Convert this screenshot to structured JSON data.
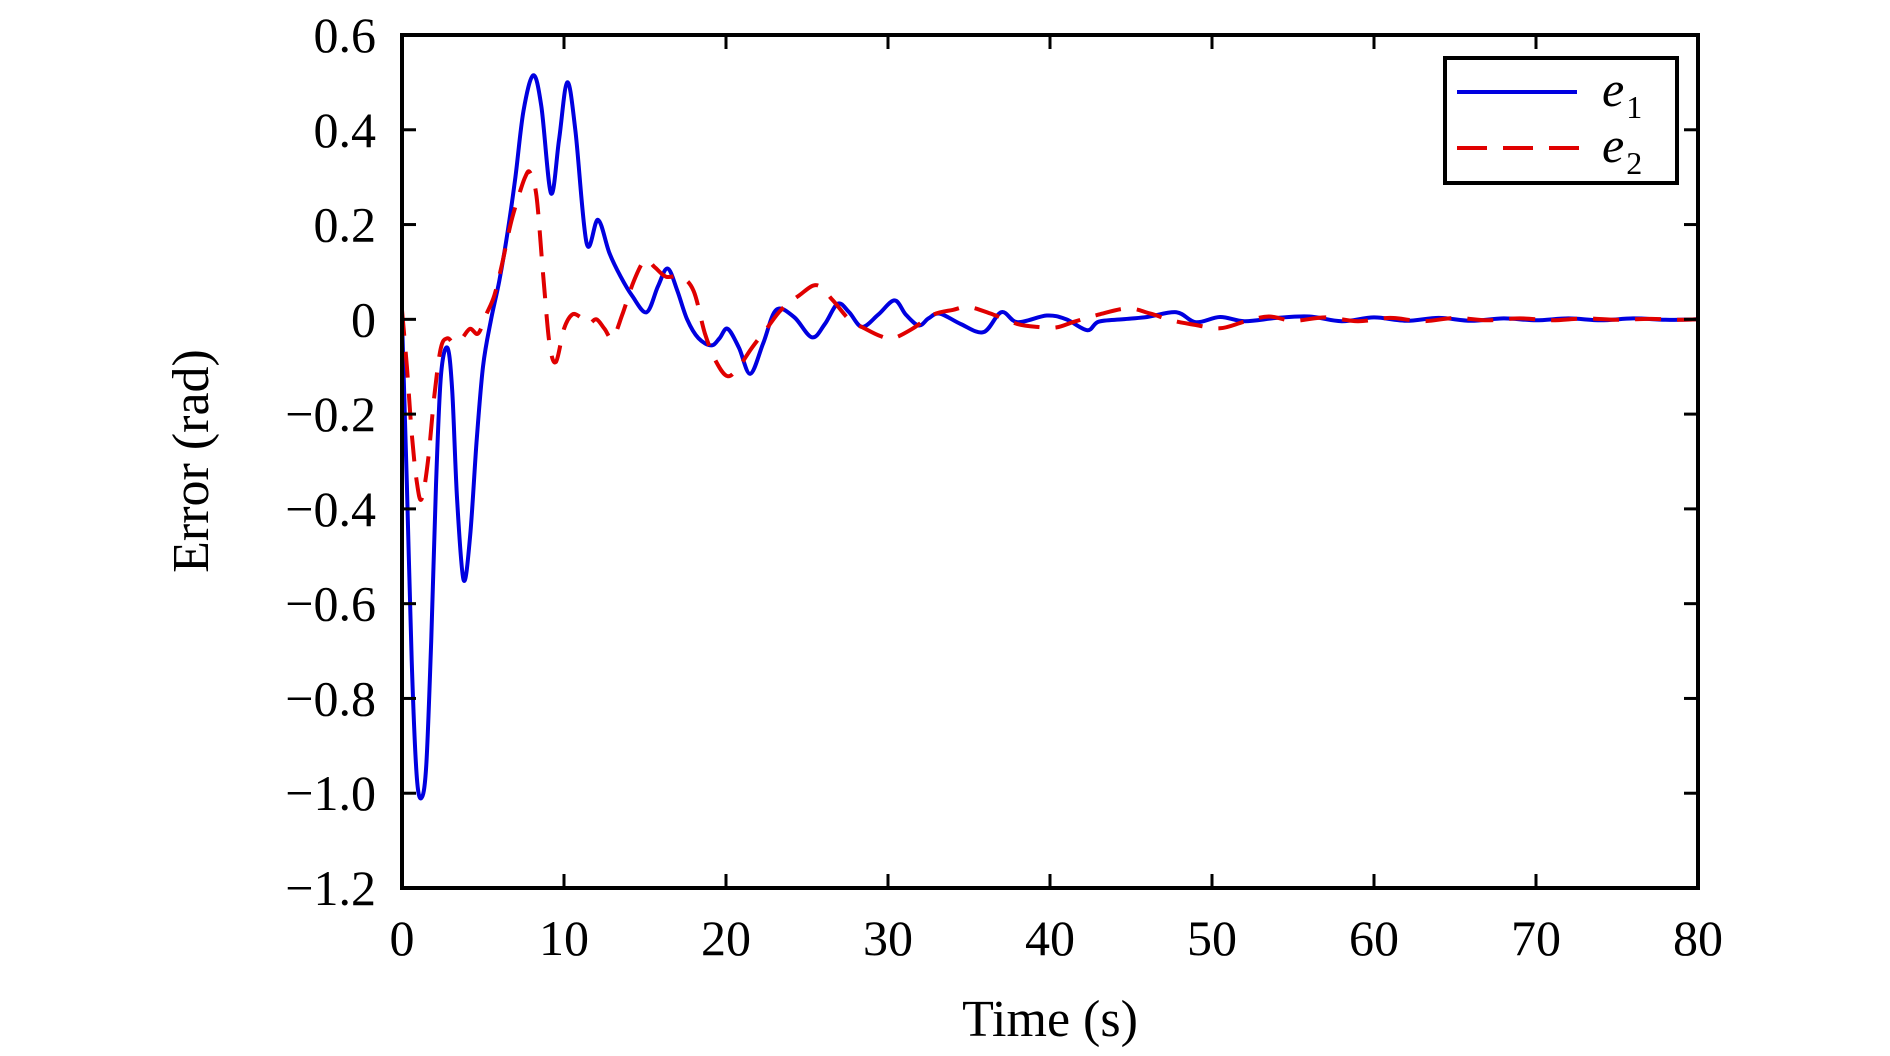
{
  "chart_data": {
    "type": "line",
    "title": "",
    "xlabel": "Time (s)",
    "ylabel": "Error (rad)",
    "xlim": [
      0,
      80
    ],
    "ylim": [
      -1.2,
      0.6
    ],
    "grid": false,
    "legend_position": "upper right",
    "x_ticks": [
      0,
      10,
      20,
      30,
      40,
      50,
      60,
      70,
      80
    ],
    "x_tick_labels": [
      "0",
      "10",
      "20",
      "30",
      "40",
      "50",
      "60",
      "70",
      "80"
    ],
    "y_ticks": [
      0.6,
      0.4,
      0.2,
      0,
      -0.2,
      -0.4,
      -0.6,
      -0.8,
      -1.0,
      -1.2
    ],
    "y_tick_labels": [
      "0.6",
      "0.4",
      "0.2",
      "0",
      "−0.2",
      "−0.4",
      "−0.6",
      "−0.8",
      "−1.0",
      "−1.2"
    ],
    "series": [
      {
        "name": "e1",
        "label_base": "e",
        "label_sub": "1",
        "color": "#0000e0",
        "style": "solid",
        "x": [
          0,
          0.3,
          0.6,
          0.9,
          1.2,
          1.5,
          1.8,
          2.1,
          2.4,
          2.8,
          3.1,
          3.4,
          3.8,
          4.2,
          4.6,
          5.0,
          5.5,
          6.0,
          6.5,
          7.0,
          7.5,
          8.1,
          8.6,
          9.2,
          9.7,
          10.2,
          10.7,
          11.4,
          12.1,
          12.8,
          13.5,
          14.2,
          15.1,
          15.8,
          16.4,
          17.0,
          17.6,
          18.3,
          19.1,
          19.6,
          20.1,
          20.8,
          21.5,
          22.3,
          23.1,
          24.2,
          25.3,
          26.1,
          26.9,
          27.6,
          28.4,
          29.4,
          30.4,
          31.1,
          31.9,
          32.5,
          33.2,
          34.5,
          35.9,
          37.0,
          38.0,
          39.8,
          41.0,
          42.3,
          43.0,
          44.5,
          46.0,
          47.8,
          49.0,
          50.5,
          52.0,
          54.0,
          56.0,
          58.0,
          60.0,
          62.0,
          64.0,
          66.0,
          68.0,
          70.0,
          72.0,
          74.0,
          76.0,
          78.0,
          80.0
        ],
        "values": [
          0,
          -0.35,
          -0.72,
          -0.96,
          -1.01,
          -0.94,
          -0.68,
          -0.35,
          -0.12,
          -0.06,
          -0.15,
          -0.38,
          -0.55,
          -0.46,
          -0.26,
          -0.1,
          0.0,
          0.08,
          0.18,
          0.3,
          0.44,
          0.515,
          0.45,
          0.266,
          0.38,
          0.5,
          0.4,
          0.16,
          0.21,
          0.14,
          0.09,
          0.05,
          0.015,
          0.07,
          0.107,
          0.06,
          0.0,
          -0.04,
          -0.055,
          -0.04,
          -0.02,
          -0.06,
          -0.115,
          -0.05,
          0.02,
          0.005,
          -0.038,
          -0.01,
          0.033,
          0.015,
          -0.016,
          0.01,
          0.04,
          0.01,
          -0.013,
          0.002,
          0.012,
          -0.01,
          -0.027,
          0.015,
          -0.006,
          0.008,
          0.0,
          -0.023,
          -0.005,
          0.0,
          0.005,
          0.015,
          -0.006,
          0.005,
          -0.004,
          0.003,
          0.006,
          -0.004,
          0.004,
          -0.003,
          0.003,
          -0.003,
          0.002,
          -0.002,
          0.002,
          -0.002,
          0.002,
          -0.001,
          0.0
        ]
      },
      {
        "name": "e2",
        "label_base": "e",
        "label_sub": "2",
        "color": "#e00000",
        "style": "dashed",
        "x": [
          0,
          0.3,
          0.6,
          0.9,
          1.2,
          1.6,
          2.0,
          2.4,
          2.8,
          3.2,
          3.7,
          4.2,
          4.7,
          5.2,
          5.7,
          6.2,
          6.7,
          7.2,
          7.6,
          7.9,
          8.3,
          8.7,
          9.1,
          9.5,
          10.0,
          10.5,
          11.0,
          11.5,
          12.0,
          12.5,
          13.0,
          13.6,
          14.3,
          15.0,
          15.6,
          16.3,
          17.2,
          18.0,
          18.7,
          19.4,
          20.1,
          20.8,
          21.6,
          22.5,
          23.4,
          24.5,
          25.6,
          26.6,
          27.6,
          28.6,
          29.5,
          30.3,
          31.5,
          32.8,
          34.0,
          35.0,
          36.5,
          38.0,
          39.2,
          40.4,
          41.5,
          43.0,
          44.8,
          46.2,
          47.5,
          49.0,
          50.5,
          52.0,
          53.5,
          55.0,
          57.0,
          59.0,
          61.0,
          63.0,
          65.0,
          67.0,
          69.0,
          71.0,
          73.0,
          75.0,
          77.0,
          79.0,
          80.0
        ],
        "values": [
          0.02,
          -0.1,
          -0.24,
          -0.34,
          -0.38,
          -0.3,
          -0.16,
          -0.06,
          -0.04,
          -0.05,
          -0.04,
          -0.02,
          -0.03,
          0.01,
          0.05,
          0.12,
          0.2,
          0.26,
          0.3,
          0.31,
          0.26,
          0.1,
          -0.05,
          -0.09,
          -0.02,
          0.01,
          0.005,
          -0.01,
          0.0,
          -0.02,
          -0.04,
          0.01,
          0.08,
          0.125,
          0.11,
          0.09,
          0.09,
          0.06,
          -0.03,
          -0.09,
          -0.12,
          -0.1,
          -0.06,
          -0.02,
          0.02,
          0.05,
          0.072,
          0.04,
          0.0,
          -0.02,
          -0.035,
          -0.04,
          -0.02,
          0.01,
          0.02,
          0.026,
          0.01,
          -0.01,
          -0.016,
          -0.017,
          -0.005,
          0.01,
          0.023,
          0.012,
          -0.002,
          -0.012,
          -0.019,
          -0.005,
          0.006,
          -0.003,
          0.004,
          -0.004,
          0.003,
          -0.004,
          0.003,
          -0.002,
          0.002,
          -0.002,
          0.002,
          -0.001,
          0.001,
          -0.001,
          0.0
        ]
      }
    ]
  },
  "legend": {
    "items": [
      {
        "base": "e",
        "sub": "1"
      },
      {
        "base": "e",
        "sub": "2"
      }
    ]
  },
  "axes": {
    "xlabel": "Time (s)",
    "ylabel": "Error (rad)"
  }
}
